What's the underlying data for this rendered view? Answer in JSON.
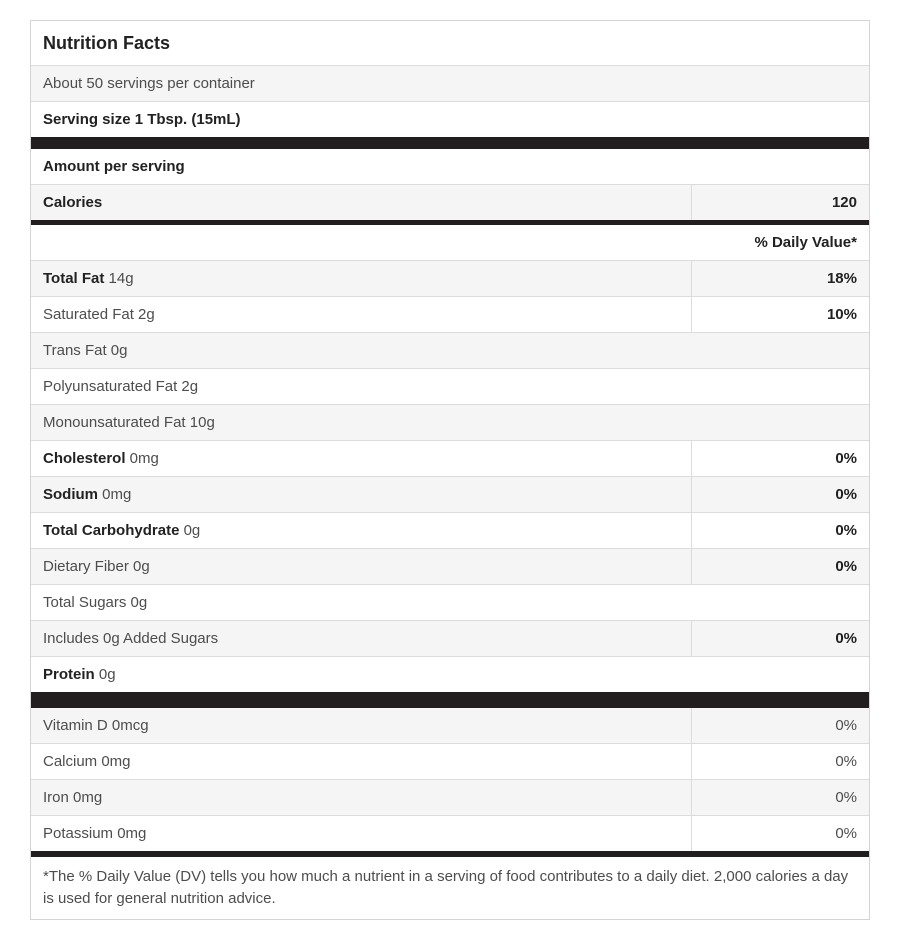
{
  "table": {
    "stripe_color": "#f5f5f5",
    "bar_color": "#221e1f",
    "border_color": "#d4d4d4",
    "rows": [
      {
        "type": "title",
        "text": "Nutrition Facts"
      },
      {
        "type": "item",
        "bold": "",
        "text": "About 50 servings per container",
        "shaded": true
      },
      {
        "type": "item",
        "bold": "Serving size 1 Tbsp. (15mL)",
        "text": ""
      },
      {
        "type": "bar",
        "height": 12
      },
      {
        "type": "item",
        "bold": "Amount per serving",
        "text": ""
      },
      {
        "type": "item",
        "bold": "Calories",
        "text": "",
        "value": "120",
        "value_bold": true,
        "shaded": true
      },
      {
        "type": "bar",
        "height": 5
      },
      {
        "type": "dv_header",
        "text": "% Daily Value*"
      },
      {
        "type": "item",
        "bold": "Total Fat",
        "text": " 14g",
        "value": "18%",
        "value_bold": true,
        "shaded": true
      },
      {
        "type": "item",
        "bold": "",
        "text": "Saturated Fat 2g",
        "value": "10%",
        "value_bold": true
      },
      {
        "type": "item",
        "bold": "",
        "text": "Trans Fat 0g",
        "shaded": true
      },
      {
        "type": "item",
        "bold": "",
        "text": "Polyunsaturated Fat 2g"
      },
      {
        "type": "item",
        "bold": "",
        "text": "Monounsaturated Fat 10g",
        "shaded": true
      },
      {
        "type": "item",
        "bold": "Cholesterol",
        "text": " 0mg",
        "value": "0%",
        "value_bold": true
      },
      {
        "type": "item",
        "bold": "Sodium",
        "text": " 0mg",
        "value": "0%",
        "value_bold": true,
        "shaded": true
      },
      {
        "type": "item",
        "bold": "Total Carbohydrate",
        "text": " 0g",
        "value": "0%",
        "value_bold": true
      },
      {
        "type": "item",
        "bold": "",
        "text": "Dietary Fiber 0g",
        "value": "0%",
        "value_bold": true,
        "shaded": true
      },
      {
        "type": "item",
        "bold": "",
        "text": "Total Sugars 0g"
      },
      {
        "type": "item",
        "bold": "",
        "text": "Includes 0g Added Sugars",
        "value": "0%",
        "value_bold": true,
        "shaded": true
      },
      {
        "type": "item",
        "bold": "Protein",
        "text": " 0g"
      },
      {
        "type": "bar",
        "height": 16
      },
      {
        "type": "item",
        "bold": "",
        "text": "Vitamin D 0mcg",
        "value": "0%",
        "value_bold": false,
        "shaded": true
      },
      {
        "type": "item",
        "bold": "",
        "text": "Calcium 0mg",
        "value": "0%",
        "value_bold": false
      },
      {
        "type": "item",
        "bold": "",
        "text": "Iron 0mg",
        "value": "0%",
        "value_bold": false,
        "shaded": true
      },
      {
        "type": "item",
        "bold": "",
        "text": "Potassium 0mg",
        "value": "0%",
        "value_bold": false
      },
      {
        "type": "footnote",
        "text": "*The % Daily Value (DV) tells you how much a nutrient in a serving of food contributes to a daily diet. 2,000 calories a day is used for general nutrition advice."
      }
    ]
  }
}
